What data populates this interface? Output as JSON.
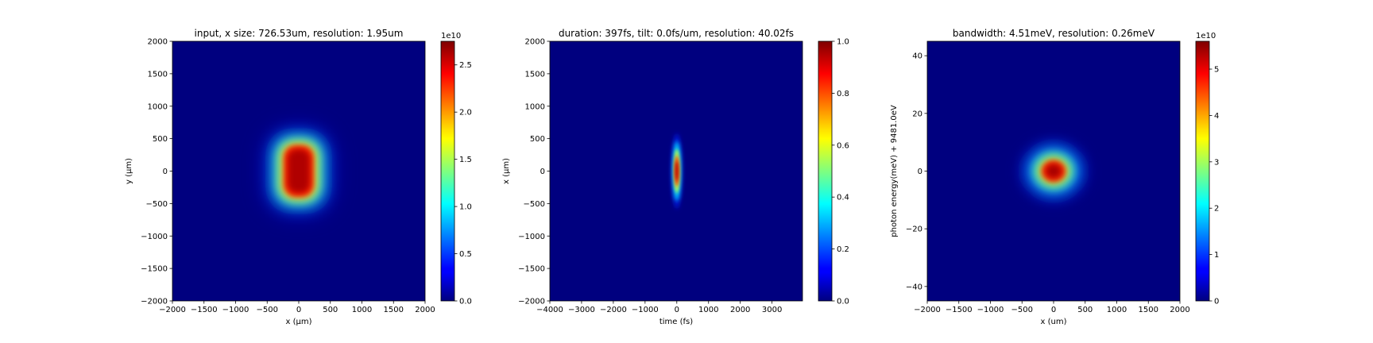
{
  "chart_data": [
    {
      "type": "heatmap",
      "title": "input, x size: 726.53um, resolution: 1.95um",
      "xlabel": "x (μm)",
      "ylabel": "y (μm)",
      "xlim": [
        -2000,
        2000
      ],
      "ylim": [
        -2000,
        2000
      ],
      "xticks": [
        -2000,
        -1500,
        -1000,
        -500,
        0,
        500,
        1000,
        1500,
        2000
      ],
      "yticks": [
        -2000,
        -1500,
        -1000,
        -500,
        0,
        500,
        1000,
        1500,
        2000
      ],
      "colormap": "jet",
      "colorbar": {
        "range": [
          0,
          2.75
        ],
        "ticks": [
          0.0,
          0.5,
          1.0,
          1.5,
          2.0,
          2.5
        ],
        "tick_labels": [
          "0.0",
          "0.5",
          "1.0",
          "1.5",
          "2.0",
          "2.5"
        ],
        "offset_label": "1e10"
      },
      "feature": {
        "shape": "rounded-rectangle",
        "center": [
          0,
          0
        ],
        "half_width_x": 420,
        "half_width_y": 560,
        "peak": 2.7
      }
    },
    {
      "type": "heatmap",
      "title": "duration: 397fs, tilt: 0.0fs/um, resolution: 40.02fs",
      "xlabel": "time (fs)",
      "ylabel": "x (μm)",
      "xlim": [
        -4000,
        3960
      ],
      "ylim": [
        -2000,
        2000
      ],
      "xticks": [
        -4000,
        -3000,
        -2000,
        -1000,
        0,
        1000,
        2000,
        3000
      ],
      "yticks": [
        -2000,
        -1500,
        -1000,
        -500,
        0,
        500,
        1000,
        1500,
        2000
      ],
      "colormap": "jet",
      "colorbar": {
        "range": [
          0,
          1.0
        ],
        "ticks": [
          0.0,
          0.2,
          0.4,
          0.6,
          0.8,
          1.0
        ],
        "tick_labels": [
          "0.0",
          "0.2",
          "0.4",
          "0.6",
          "0.8",
          "1.0"
        ],
        "offset_label": ""
      },
      "feature": {
        "shape": "ellipse",
        "center": [
          0,
          0
        ],
        "sigma_x": 110,
        "sigma_y": 400,
        "peak": 1.0
      }
    },
    {
      "type": "heatmap",
      "title": "bandwidth: 4.51meV, resolution: 0.26meV",
      "xlabel": "x (um)",
      "ylabel": "photon energy(meV) + 9481.0eV",
      "xlim": [
        -2000,
        2000
      ],
      "ylim": [
        -45,
        45
      ],
      "xticks": [
        -2000,
        -1500,
        -1000,
        -500,
        0,
        500,
        1000,
        1500,
        2000
      ],
      "yticks": [
        -40,
        -20,
        0,
        20,
        40
      ],
      "colormap": "jet",
      "colorbar": {
        "range": [
          0,
          5.6
        ],
        "ticks": [
          0,
          1,
          2,
          3,
          4,
          5
        ],
        "tick_labels": [
          "0",
          "1",
          "2",
          "3",
          "4",
          "5"
        ],
        "offset_label": "1e10"
      },
      "feature": {
        "shape": "ellipse",
        "center": [
          0,
          0
        ],
        "sigma_x": 330,
        "sigma_y": 6.5,
        "peak": 5.5
      }
    }
  ]
}
